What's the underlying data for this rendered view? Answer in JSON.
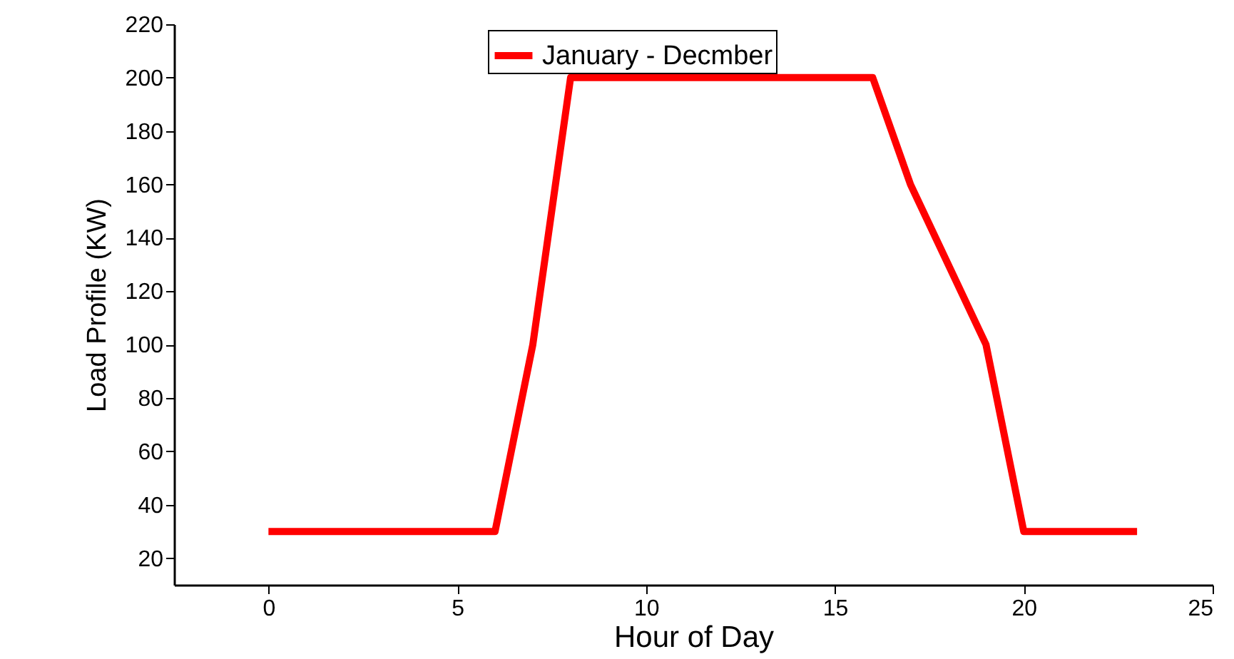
{
  "chart_data": {
    "type": "line",
    "xlabel": "Hour of Day",
    "ylabel": "Load Profile (KW)",
    "x": [
      0,
      1,
      2,
      3,
      4,
      5,
      6,
      7,
      8,
      9,
      10,
      11,
      12,
      13,
      14,
      15,
      16,
      17,
      18,
      19,
      20,
      21,
      22,
      23
    ],
    "series": [
      {
        "name": "January - Decmber",
        "color": "#ff0000",
        "values": [
          30,
          30,
          30,
          30,
          30,
          30,
          30,
          100,
          200,
          200,
          200,
          200,
          200,
          200,
          200,
          200,
          200,
          160,
          130,
          100,
          30,
          30,
          30,
          30
        ]
      }
    ],
    "xlim": [
      -2.5,
      25
    ],
    "xticks": [
      0,
      5,
      10,
      15,
      20,
      25
    ],
    "ylim": [
      10,
      220
    ],
    "yticks": [
      20,
      40,
      60,
      80,
      100,
      120,
      140,
      160,
      180,
      200,
      220
    ],
    "grid": false,
    "legend": "top",
    "marker": "none",
    "line_style": "solid"
  }
}
